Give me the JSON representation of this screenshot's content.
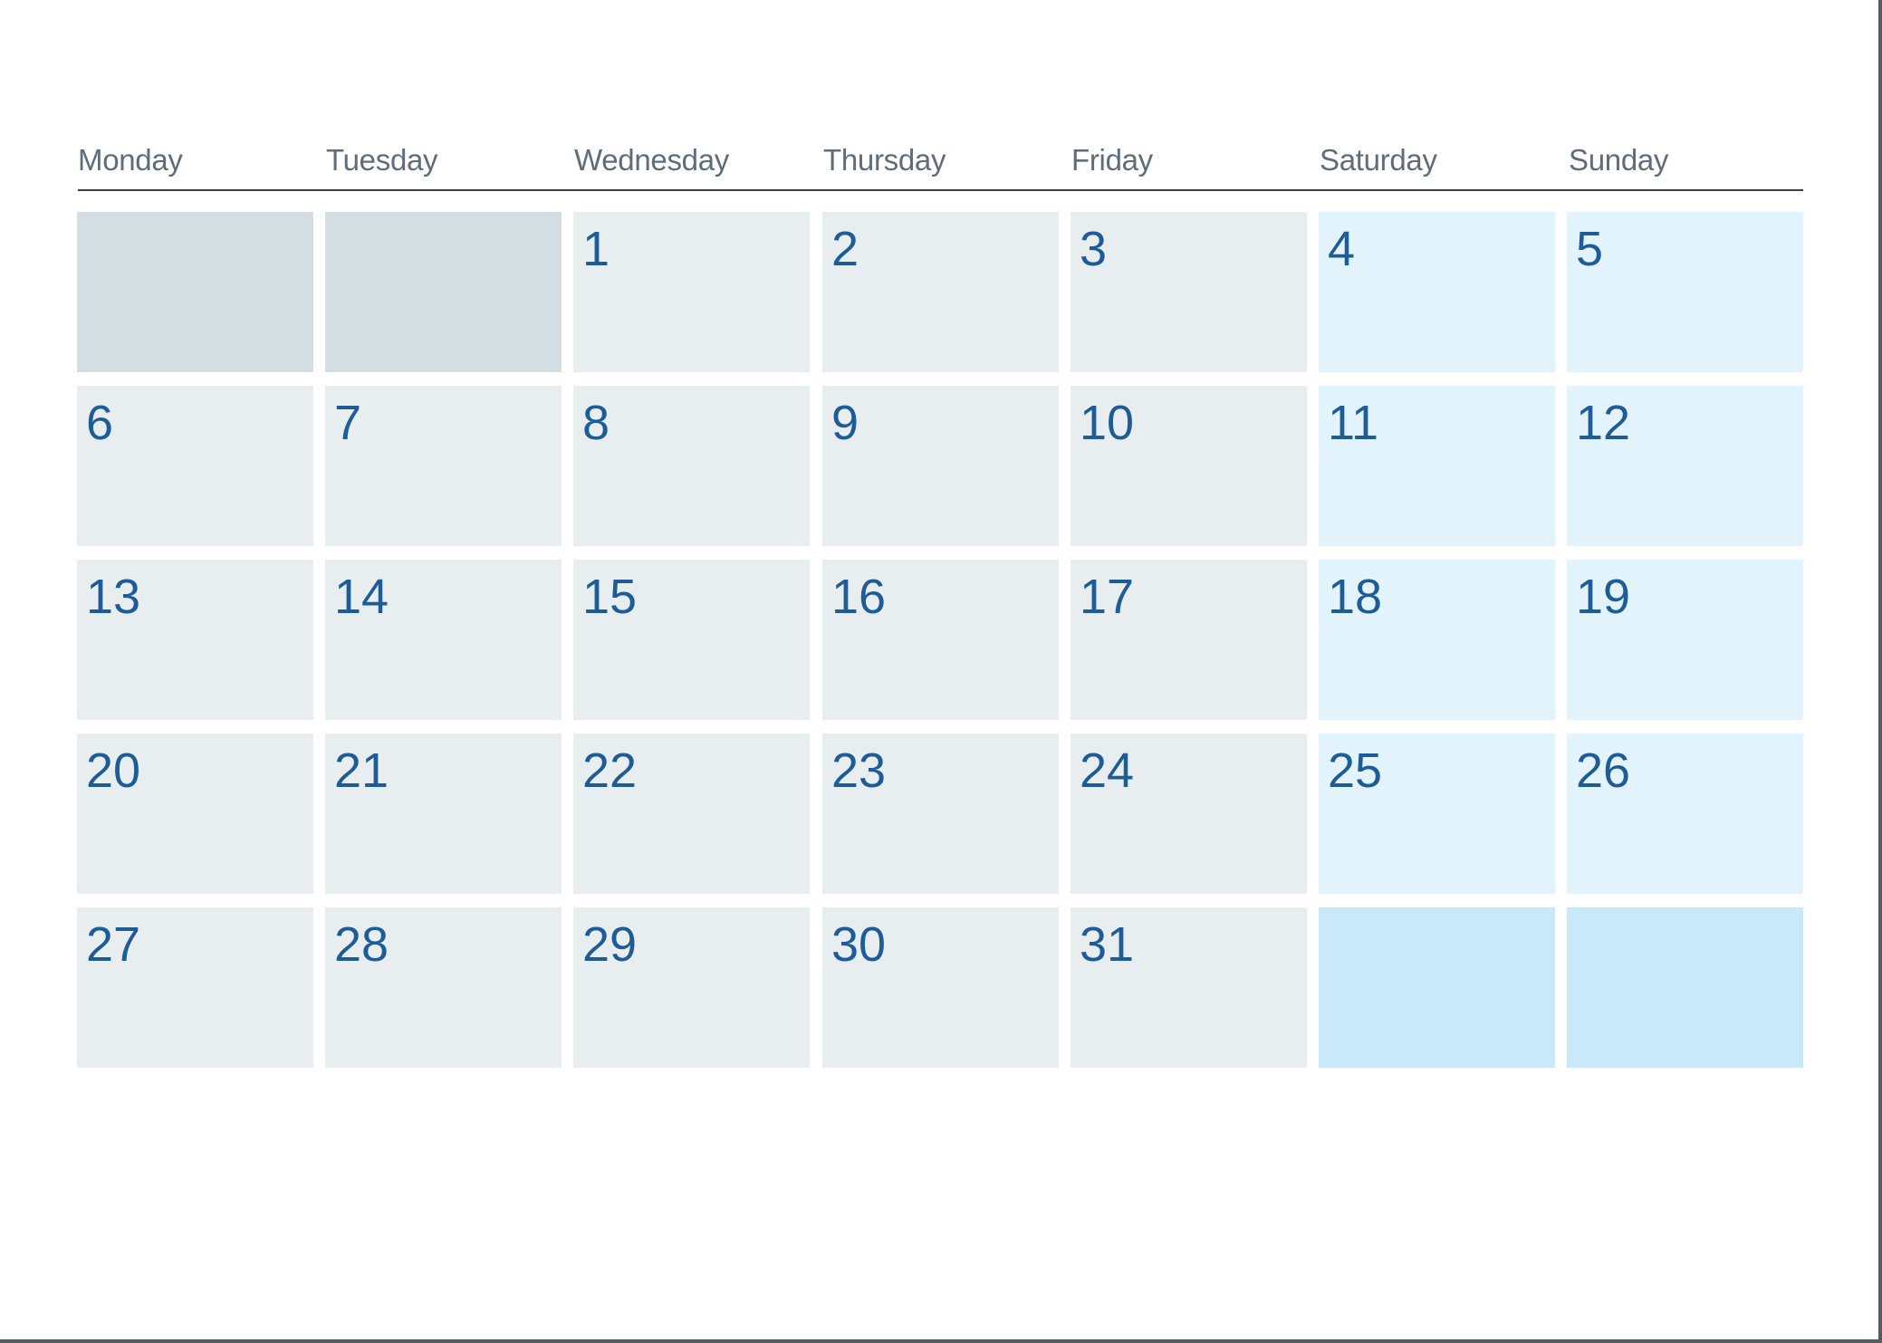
{
  "days_of_week": [
    "Monday",
    "Tuesday",
    "Wednesday",
    "Thursday",
    "Friday",
    "Saturday",
    "Sunday"
  ],
  "weeks": [
    [
      "",
      "",
      "1",
      "2",
      "3",
      "4",
      "5"
    ],
    [
      "6",
      "7",
      "8",
      "9",
      "10",
      "11",
      "12"
    ],
    [
      "13",
      "14",
      "15",
      "16",
      "17",
      "18",
      "19"
    ],
    [
      "20",
      "21",
      "22",
      "23",
      "24",
      "25",
      "26"
    ],
    [
      "27",
      "28",
      "29",
      "30",
      "31",
      "",
      ""
    ]
  ],
  "colors": {
    "weekday_cell": "#e8edf0",
    "blank_weekday_cell": "#d3dde2",
    "weekend_cell": "#e2f3fb",
    "blank_weekend_cell": "#c9e8f9",
    "date_number": "#1d5c96",
    "day_label": "#5d6d7b"
  }
}
